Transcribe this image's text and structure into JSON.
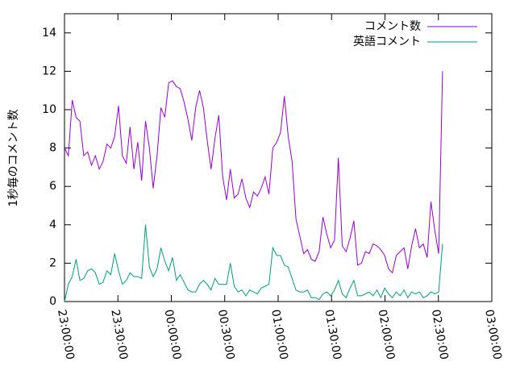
{
  "chart_data": {
    "type": "line",
    "ylabel": "1秒毎のコメント数",
    "x": [
      "23:00:00",
      "23:02:10",
      "23:04:20",
      "23:06:30",
      "23:08:40",
      "23:10:50",
      "23:13:00",
      "23:15:10",
      "23:17:20",
      "23:19:30",
      "23:21:40",
      "23:23:50",
      "23:26:00",
      "23:28:10",
      "23:30:20",
      "23:32:30",
      "23:34:40",
      "23:36:50",
      "23:39:00",
      "23:41:10",
      "23:43:20",
      "23:45:30",
      "23:47:40",
      "23:49:50",
      "23:52:00",
      "23:54:10",
      "23:56:20",
      "23:58:30",
      "00:00:40",
      "00:02:50",
      "00:05:00",
      "00:07:10",
      "00:09:20",
      "00:11:30",
      "00:13:40",
      "00:15:50",
      "00:18:00",
      "00:20:10",
      "00:22:20",
      "00:24:30",
      "00:26:40",
      "00:28:50",
      "00:31:00",
      "00:33:10",
      "00:35:20",
      "00:37:30",
      "00:39:40",
      "00:41:50",
      "00:44:00",
      "00:46:10",
      "00:48:20",
      "00:50:30",
      "00:52:40",
      "00:54:50",
      "00:57:00",
      "00:59:10",
      "01:01:20",
      "01:03:30",
      "01:05:40",
      "01:07:50",
      "01:10:00",
      "01:12:10",
      "01:14:20",
      "01:16:30",
      "01:18:40",
      "01:20:50",
      "01:23:00",
      "01:25:10",
      "01:27:20",
      "01:29:30",
      "01:31:40",
      "01:33:50",
      "01:36:00",
      "01:38:10",
      "01:40:20",
      "01:42:30",
      "01:44:40",
      "01:46:50",
      "01:49:00",
      "01:51:10",
      "01:53:20",
      "01:55:30",
      "01:57:40",
      "01:59:50",
      "02:02:00",
      "02:04:10",
      "02:06:20",
      "02:08:30",
      "02:10:40",
      "02:12:50",
      "02:15:00",
      "02:17:10",
      "02:19:20",
      "02:21:30",
      "02:23:40",
      "02:25:50",
      "02:28:00",
      "02:30:10",
      "02:32:20"
    ],
    "series": [
      {
        "name": "コメント数",
        "color": "#9400d3",
        "values": [
          8.0,
          7.6,
          10.5,
          9.6,
          9.4,
          7.6,
          7.8,
          7.1,
          7.6,
          6.9,
          7.3,
          8.2,
          8.0,
          8.6,
          10.2,
          7.6,
          7.2,
          9.1,
          6.9,
          8.3,
          6.3,
          9.4,
          8.0,
          5.9,
          7.6,
          10.1,
          9.6,
          11.4,
          11.5,
          11.2,
          11.1,
          10.4,
          9.5,
          8.4,
          10.1,
          11.0,
          10.1,
          8.4,
          6.9,
          8.5,
          9.7,
          6.5,
          5.3,
          6.9,
          5.4,
          5.6,
          6.4,
          5.4,
          4.9,
          5.7,
          5.5,
          5.9,
          6.5,
          5.6,
          8.0,
          8.3,
          8.8,
          10.7,
          8.6,
          7.3,
          4.3,
          3.4,
          2.5,
          2.7,
          2.2,
          2.1,
          2.6,
          4.4,
          3.5,
          2.8,
          3.2,
          7.5,
          2.9,
          2.6,
          3.3,
          4.2,
          1.9,
          2.0,
          2.6,
          2.5,
          3.0,
          2.9,
          2.7,
          2.4,
          1.7,
          1.5,
          2.4,
          2.6,
          2.8,
          1.7,
          2.9,
          3.8,
          2.8,
          3.0,
          2.3,
          5.2,
          3.7,
          2.5,
          12.0
        ]
      },
      {
        "name": "英語コメント",
        "color": "#009e73",
        "values": [
          0.0,
          0.9,
          1.3,
          2.2,
          1.1,
          1.2,
          1.6,
          1.7,
          1.5,
          0.9,
          1.0,
          1.6,
          1.4,
          2.5,
          1.6,
          0.9,
          1.1,
          1.5,
          1.3,
          1.3,
          1.2,
          4.0,
          1.8,
          1.3,
          1.7,
          2.8,
          2.1,
          1.6,
          2.3,
          1.1,
          1.4,
          1.0,
          0.6,
          0.5,
          0.5,
          0.9,
          1.1,
          0.9,
          0.6,
          1.2,
          0.9,
          0.9,
          0.9,
          2.0,
          0.8,
          0.5,
          0.6,
          0.3,
          0.6,
          0.5,
          0.4,
          0.7,
          0.8,
          0.9,
          2.8,
          2.4,
          2.4,
          1.9,
          1.8,
          1.2,
          0.6,
          0.5,
          0.5,
          0.6,
          0.2,
          0.2,
          0.1,
          0.4,
          0.5,
          0.3,
          0.6,
          1.1,
          0.4,
          0.2,
          0.7,
          1.1,
          0.3,
          0.3,
          0.4,
          0.5,
          0.3,
          0.6,
          0.2,
          0.7,
          0.4,
          0.2,
          0.5,
          0.3,
          0.6,
          0.2,
          0.5,
          0.4,
          0.5,
          0.2,
          0.3,
          0.5,
          0.4,
          0.5,
          3.0
        ]
      }
    ],
    "xlim": [
      "23:00:00",
      "03:00:00"
    ],
    "xticks": [
      "23:00:00",
      "23:30:00",
      "00:00:00",
      "00:30:00",
      "01:00:00",
      "01:30:00",
      "02:00:00",
      "02:30:00",
      "03:00:00"
    ],
    "ylim": [
      0,
      15
    ],
    "yticks": [
      0,
      2,
      4,
      6,
      8,
      10,
      12,
      14
    ],
    "legend": "top-right"
  }
}
